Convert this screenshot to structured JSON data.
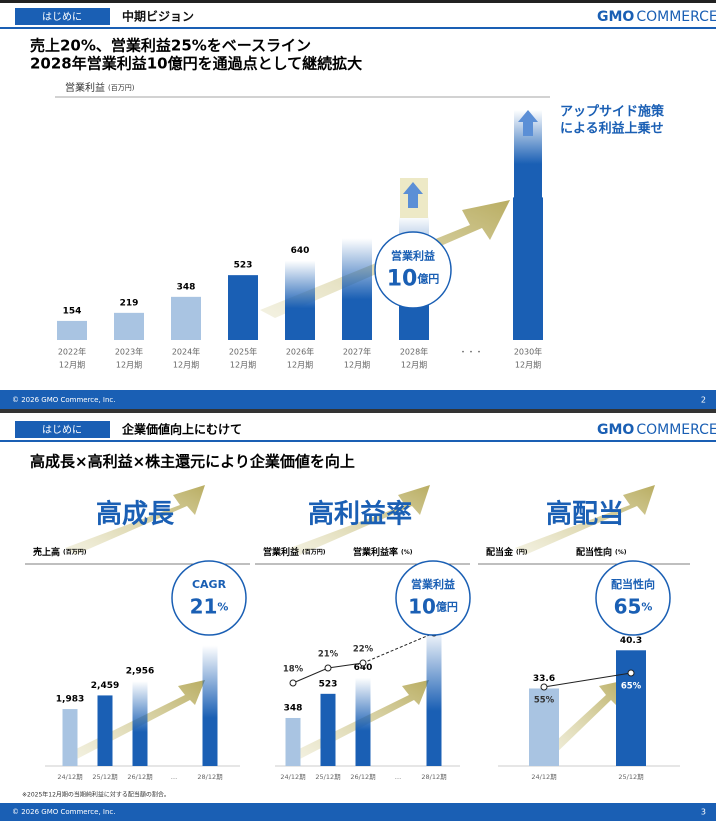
{
  "slides": [
    {
      "tag": "はじめに",
      "title": "中期ビジョン",
      "logo": {
        "bold": "GMO",
        "rest": "COMMERCE"
      },
      "heading": [
        "売上20%、営業利益25%をベースライン",
        "2028年営業利益10億円を通過点として継続拡大"
      ],
      "chart": {
        "label": "営業利益",
        "unit": "(百万円)",
        "categories": [
          [
            "2022年",
            "12月期"
          ],
          [
            "2023年",
            "12月期"
          ],
          [
            "2024年",
            "12月期"
          ],
          [
            "2025年",
            "12月期"
          ],
          [
            "2026年",
            "12月期"
          ],
          [
            "2027年",
            "12月期"
          ],
          [
            "2028年",
            "12月期"
          ],
          [
            "・・・"
          ],
          [
            "2030年",
            "12月期"
          ]
        ],
        "values": [
          154,
          219,
          348,
          523,
          640,
          820,
          1000,
          null,
          1150
        ],
        "value_labels": [
          "154",
          "219",
          "348",
          "523",
          "640",
          null,
          null,
          null,
          null
        ]
      },
      "callout": [
        "営業利益",
        "10",
        "億円"
      ],
      "upside": [
        "アップサイド施策",
        "による利益上乗せ"
      ],
      "footer": "© 2026 GMO Commerce, Inc.",
      "page": "2"
    },
    {
      "tag": "はじめに",
      "title": "企業価値向上にむけて",
      "logo": {
        "bold": "GMO",
        "rest": "COMMERCE"
      },
      "heading": "高成長×高利益×株主還元により企業価値を向上",
      "panels": [
        {
          "title": "高成長",
          "labels": [
            [
              "売上高",
              "(百万円)"
            ]
          ],
          "callout": [
            "CAGR",
            "21",
            "%"
          ],
          "categories": [
            "24/12期",
            "25/12期",
            "26/12期",
            "…",
            "28/12期"
          ],
          "values": [
            1983,
            2459,
            2956,
            null,
            4200
          ],
          "value_labels": [
            "1,983",
            "2,459",
            "2,956",
            null,
            null
          ]
        },
        {
          "title": "高利益率",
          "labels": [
            [
              "営業利益",
              "(百万円)"
            ],
            [
              "営業利益率",
              "(%)"
            ]
          ],
          "callout": [
            "営業利益",
            "10",
            "億円"
          ],
          "categories": [
            "24/12期",
            "25/12期",
            "26/12期",
            "…",
            "28/12期"
          ],
          "values": [
            348,
            523,
            640,
            null,
            1000
          ],
          "value_labels": [
            "348",
            "523",
            "640",
            null,
            null
          ],
          "line": [
            18,
            21,
            22,
            null,
            28
          ],
          "line_labels": [
            "18%",
            "21%",
            "22%",
            null,
            null
          ]
        },
        {
          "title": "高配当",
          "labels": [
            [
              "配当金",
              "(円)"
            ],
            [
              "配当性向",
              "(%)"
            ]
          ],
          "callout": [
            "配当性向",
            "65",
            "%"
          ],
          "categories": [
            "24/12期",
            "25/12期"
          ],
          "values": [
            33.6,
            40.3
          ],
          "line": [
            55,
            65
          ],
          "line_labels": [
            "55%",
            "65%"
          ]
        }
      ],
      "note": "※2025年12月期の当期純利益に対する配当額の割合。",
      "footer": "© 2026 GMO Commerce, Inc.",
      "page": "3"
    }
  ]
}
